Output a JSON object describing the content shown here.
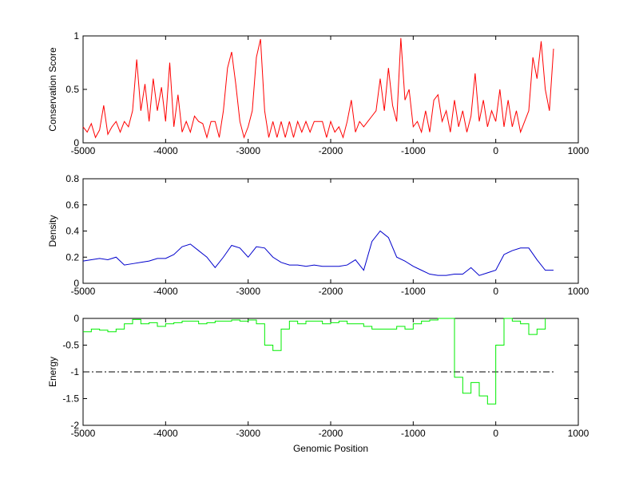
{
  "chart_data": [
    {
      "type": "line",
      "ylabel": "Conservation Score",
      "x": [
        -5000,
        -4950,
        -4900,
        -4850,
        -4800,
        -4750,
        -4700,
        -4650,
        -4600,
        -4550,
        -4500,
        -4450,
        -4400,
        -4350,
        -4300,
        -4250,
        -4200,
        -4150,
        -4100,
        -4050,
        -4000,
        -3950,
        -3900,
        -3850,
        -3800,
        -3750,
        -3700,
        -3650,
        -3600,
        -3550,
        -3500,
        -3450,
        -3400,
        -3350,
        -3300,
        -3250,
        -3200,
        -3150,
        -3100,
        -3050,
        -3000,
        -2950,
        -2900,
        -2850,
        -2800,
        -2750,
        -2700,
        -2650,
        -2600,
        -2550,
        -2500,
        -2450,
        -2400,
        -2350,
        -2300,
        -2250,
        -2200,
        -2150,
        -2100,
        -2050,
        -2000,
        -1950,
        -1900,
        -1850,
        -1800,
        -1750,
        -1700,
        -1650,
        -1600,
        -1550,
        -1500,
        -1450,
        -1400,
        -1350,
        -1300,
        -1250,
        -1200,
        -1150,
        -1100,
        -1050,
        -1000,
        -950,
        -900,
        -850,
        -800,
        -750,
        -700,
        -650,
        -600,
        -550,
        -500,
        -450,
        -400,
        -350,
        -300,
        -250,
        -200,
        -150,
        -100,
        -50,
        0,
        50,
        100,
        150,
        200,
        250,
        300,
        350,
        400,
        450,
        500,
        550,
        600,
        650,
        700
      ],
      "series": [
        {
          "color": "#ff0000",
          "values": [
            0.15,
            0.1,
            0.18,
            0.05,
            0.12,
            0.35,
            0.08,
            0.15,
            0.2,
            0.1,
            0.2,
            0.15,
            0.3,
            0.78,
            0.3,
            0.55,
            0.2,
            0.6,
            0.3,
            0.52,
            0.2,
            0.75,
            0.15,
            0.45,
            0.1,
            0.2,
            0.1,
            0.25,
            0.2,
            0.18,
            0.05,
            0.2,
            0.2,
            0.05,
            0.3,
            0.7,
            0.85,
            0.55,
            0.2,
            0.05,
            0.15,
            0.3,
            0.8,
            0.97,
            0.3,
            0.05,
            0.2,
            0.05,
            0.2,
            0.05,
            0.2,
            0.05,
            0.2,
            0.1,
            0.2,
            0.1,
            0.2,
            0.2,
            0.2,
            0.05,
            0.2,
            0.1,
            0.15,
            0.05,
            0.2,
            0.4,
            0.1,
            0.2,
            0.15,
            0.2,
            0.25,
            0.3,
            0.6,
            0.3,
            0.7,
            0.35,
            0.2,
            0.98,
            0.4,
            0.5,
            0.15,
            0.2,
            0.1,
            0.3,
            0.1,
            0.4,
            0.45,
            0.2,
            0.3,
            0.1,
            0.4,
            0.15,
            0.3,
            0.1,
            0.25,
            0.65,
            0.2,
            0.4,
            0.15,
            0.3,
            0.2,
            0.5,
            0.15,
            0.4,
            0.15,
            0.3,
            0.1,
            0.2,
            0.3,
            0.8,
            0.6,
            0.95,
            0.5,
            0.3,
            0.88
          ]
        }
      ],
      "xlim": [
        -5000,
        1000
      ],
      "xticks": [
        -5000,
        -4000,
        -3000,
        -2000,
        -1000,
        0,
        1000
      ],
      "ylim": [
        0,
        1
      ],
      "yticks": [
        0,
        0.5,
        1
      ]
    },
    {
      "type": "line",
      "ylabel": "Density",
      "x": [
        -5000,
        -4900,
        -4800,
        -4700,
        -4600,
        -4500,
        -4400,
        -4300,
        -4200,
        -4100,
        -4000,
        -3900,
        -3800,
        -3700,
        -3600,
        -3500,
        -3400,
        -3300,
        -3200,
        -3100,
        -3000,
        -2900,
        -2800,
        -2700,
        -2600,
        -2500,
        -2400,
        -2300,
        -2200,
        -2100,
        -2000,
        -1900,
        -1800,
        -1700,
        -1600,
        -1500,
        -1400,
        -1300,
        -1200,
        -1100,
        -1000,
        -900,
        -800,
        -700,
        -600,
        -500,
        -400,
        -300,
        -200,
        -100,
        0,
        100,
        200,
        300,
        400,
        500,
        600,
        700
      ],
      "series": [
        {
          "color": "#0000cc",
          "values": [
            0.17,
            0.18,
            0.19,
            0.18,
            0.2,
            0.14,
            0.15,
            0.16,
            0.17,
            0.19,
            0.19,
            0.22,
            0.28,
            0.3,
            0.25,
            0.2,
            0.12,
            0.2,
            0.29,
            0.27,
            0.2,
            0.28,
            0.27,
            0.2,
            0.16,
            0.14,
            0.14,
            0.13,
            0.14,
            0.13,
            0.13,
            0.13,
            0.14,
            0.18,
            0.1,
            0.32,
            0.4,
            0.35,
            0.2,
            0.17,
            0.13,
            0.1,
            0.07,
            0.06,
            0.06,
            0.07,
            0.07,
            0.12,
            0.06,
            0.08,
            0.1,
            0.22,
            0.25,
            0.27,
            0.27,
            0.18,
            0.1,
            0.1
          ]
        }
      ],
      "xlim": [
        -5000,
        1000
      ],
      "xticks": [
        -5000,
        -4000,
        -3000,
        -2000,
        -1000,
        0,
        1000
      ],
      "ylim": [
        0,
        0.8
      ],
      "yticks": [
        0,
        0.2,
        0.4,
        0.6,
        0.8
      ]
    },
    {
      "type": "line",
      "ylabel": "Energy",
      "xlabel": "Genomic Position",
      "step": true,
      "x": [
        -5000,
        -4900,
        -4800,
        -4700,
        -4600,
        -4500,
        -4400,
        -4300,
        -4200,
        -4100,
        -4000,
        -3900,
        -3800,
        -3700,
        -3600,
        -3500,
        -3400,
        -3300,
        -3200,
        -3100,
        -3000,
        -2900,
        -2800,
        -2700,
        -2600,
        -2500,
        -2400,
        -2300,
        -2200,
        -2100,
        -2000,
        -1900,
        -1800,
        -1700,
        -1600,
        -1500,
        -1400,
        -1300,
        -1200,
        -1100,
        -1000,
        -900,
        -800,
        -700,
        -600,
        -500,
        -400,
        -300,
        -200,
        -100,
        0,
        100,
        200,
        300,
        400,
        500,
        600
      ],
      "series": [
        {
          "color": "#00ee00",
          "values": [
            -0.25,
            -0.2,
            -0.22,
            -0.25,
            -0.2,
            -0.1,
            -0.02,
            -0.1,
            -0.08,
            -0.15,
            -0.1,
            -0.08,
            -0.05,
            -0.05,
            -0.1,
            -0.08,
            -0.05,
            -0.05,
            -0.03,
            -0.05,
            -0.03,
            -0.1,
            -0.5,
            -0.6,
            -0.2,
            -0.05,
            -0.1,
            -0.05,
            -0.05,
            -0.1,
            -0.08,
            -0.05,
            -0.1,
            -0.1,
            -0.15,
            -0.2,
            -0.2,
            -0.2,
            -0.15,
            -0.2,
            -0.1,
            -0.05,
            -0.03,
            0,
            0,
            -1.1,
            -1.4,
            -1.2,
            -1.45,
            -1.6,
            -0.5,
            0,
            -0.05,
            -0.1,
            -0.3,
            -0.2,
            0
          ]
        }
      ],
      "hline": {
        "value": -1,
        "color": "#000000"
      },
      "xlim": [
        -5000,
        1000
      ],
      "xticks": [
        -5000,
        -4000,
        -3000,
        -2000,
        -1000,
        0,
        1000
      ],
      "ylim": [
        -2,
        0
      ],
      "yticks": [
        -2,
        -1.5,
        -1,
        -0.5,
        0
      ]
    }
  ]
}
